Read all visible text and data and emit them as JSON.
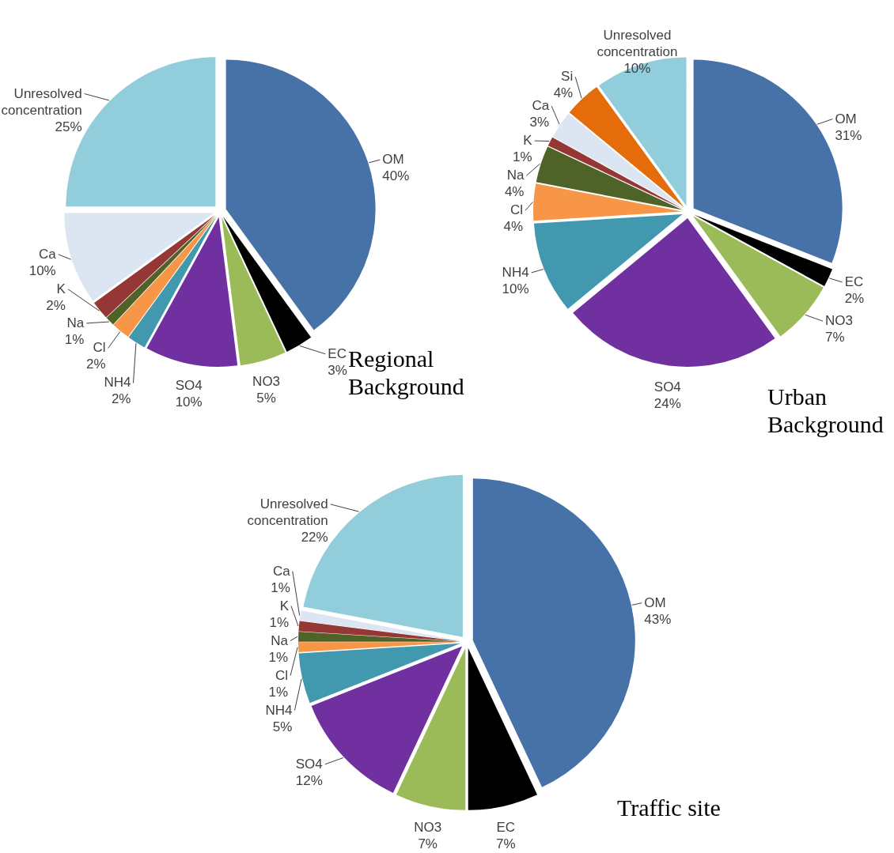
{
  "chart_data": [
    {
      "type": "pie",
      "title": "Regional Background",
      "categories": [
        "OM",
        "EC",
        "NO3",
        "SO4",
        "NH4",
        "Cl",
        "Na",
        "K",
        "Ca",
        "Unresolved concentration"
      ],
      "values": [
        40,
        3,
        5,
        10,
        2,
        2,
        1,
        2,
        10,
        25
      ],
      "value_labels": [
        "40%",
        "3%",
        "5%",
        "10%",
        "2%",
        "2%",
        "1%",
        "2%",
        "10%",
        "25%"
      ],
      "colors": [
        "#4672a8",
        "#000000",
        "#9bbb59",
        "#7030a0",
        "#4198af",
        "#f79646",
        "#4f6228",
        "#953735",
        "#dce6f2",
        "#92cddc"
      ]
    },
    {
      "type": "pie",
      "title": "Urban Background",
      "categories": [
        "OM",
        "EC",
        "NO3",
        "SO4",
        "NH4",
        "Cl",
        "Na",
        "K",
        "Ca",
        "Si",
        "Unresolved concentration"
      ],
      "values": [
        31,
        2,
        7,
        24,
        10,
        4,
        4,
        1,
        3,
        4,
        10
      ],
      "value_labels": [
        "31%",
        "2%",
        "7%",
        "24%",
        "10%",
        "4%",
        "4%",
        "1%",
        "3%",
        "4%",
        "10%"
      ],
      "colors": [
        "#4672a8",
        "#000000",
        "#9bbb59",
        "#7030a0",
        "#4198af",
        "#f79646",
        "#4f6228",
        "#953735",
        "#dce6f2",
        "#e46c0a",
        "#92cddc"
      ]
    },
    {
      "type": "pie",
      "title": "Traffic site",
      "categories": [
        "OM",
        "EC",
        "NO3",
        "SO4",
        "NH4",
        "Cl",
        "Na",
        "K",
        "Ca",
        "Unresolved concentration"
      ],
      "values": [
        43,
        7,
        7,
        12,
        5,
        1,
        1,
        1,
        1,
        22
      ],
      "value_labels": [
        "43%",
        "7%",
        "7%",
        "12%",
        "5%",
        "1%",
        "1%",
        "1%",
        "1%",
        "22%"
      ],
      "colors": [
        "#4672a8",
        "#000000",
        "#9bbb59",
        "#7030a0",
        "#4198af",
        "#f79646",
        "#4f6228",
        "#953735",
        "#dce6f2",
        "#92cddc"
      ]
    }
  ]
}
